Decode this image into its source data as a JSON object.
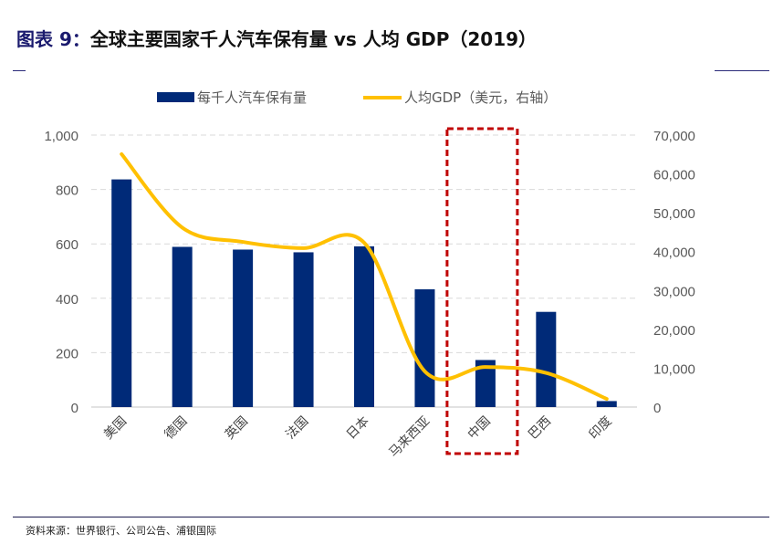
{
  "figure": {
    "label": "图表 9：",
    "title": "全球主要国家千人汽车保有量 vs 人均 GDP（2019）"
  },
  "source": "资料来源：世界银行、公司公告、浦银国际",
  "chart_data": {
    "type": "bar+line",
    "categories": [
      "美国",
      "德国",
      "英国",
      "法国",
      "日本",
      "马来西亚",
      "中国",
      "巴西",
      "印度"
    ],
    "series": [
      {
        "name": "每千人汽车保有量",
        "type": "bar",
        "axis": "left",
        "color": "#002a78",
        "values": [
          837,
          589,
          579,
          569,
          591,
          433,
          173,
          350,
          22
        ]
      },
      {
        "name": "人均GDP（美元，右轴）",
        "type": "line",
        "axis": "right",
        "color": "#ffc000",
        "smooth": true,
        "values": [
          65100,
          46200,
          42500,
          40900,
          42300,
          9200,
          10300,
          8800,
          2100
        ]
      }
    ],
    "left_axis": {
      "ylim": [
        0,
        1000
      ],
      "ticks": [
        "0",
        "200",
        "400",
        "600",
        "800",
        "1,000"
      ]
    },
    "right_axis": {
      "ylim": [
        0,
        70000
      ],
      "ticks": [
        "0",
        "10,000",
        "20,000",
        "30,000",
        "40,000",
        "50,000",
        "60,000",
        "70,000"
      ]
    },
    "grid": "horizontal dashed",
    "legend": "top",
    "highlight": {
      "category": "中国",
      "style": "red dashed box",
      "color": "#c00000"
    }
  }
}
